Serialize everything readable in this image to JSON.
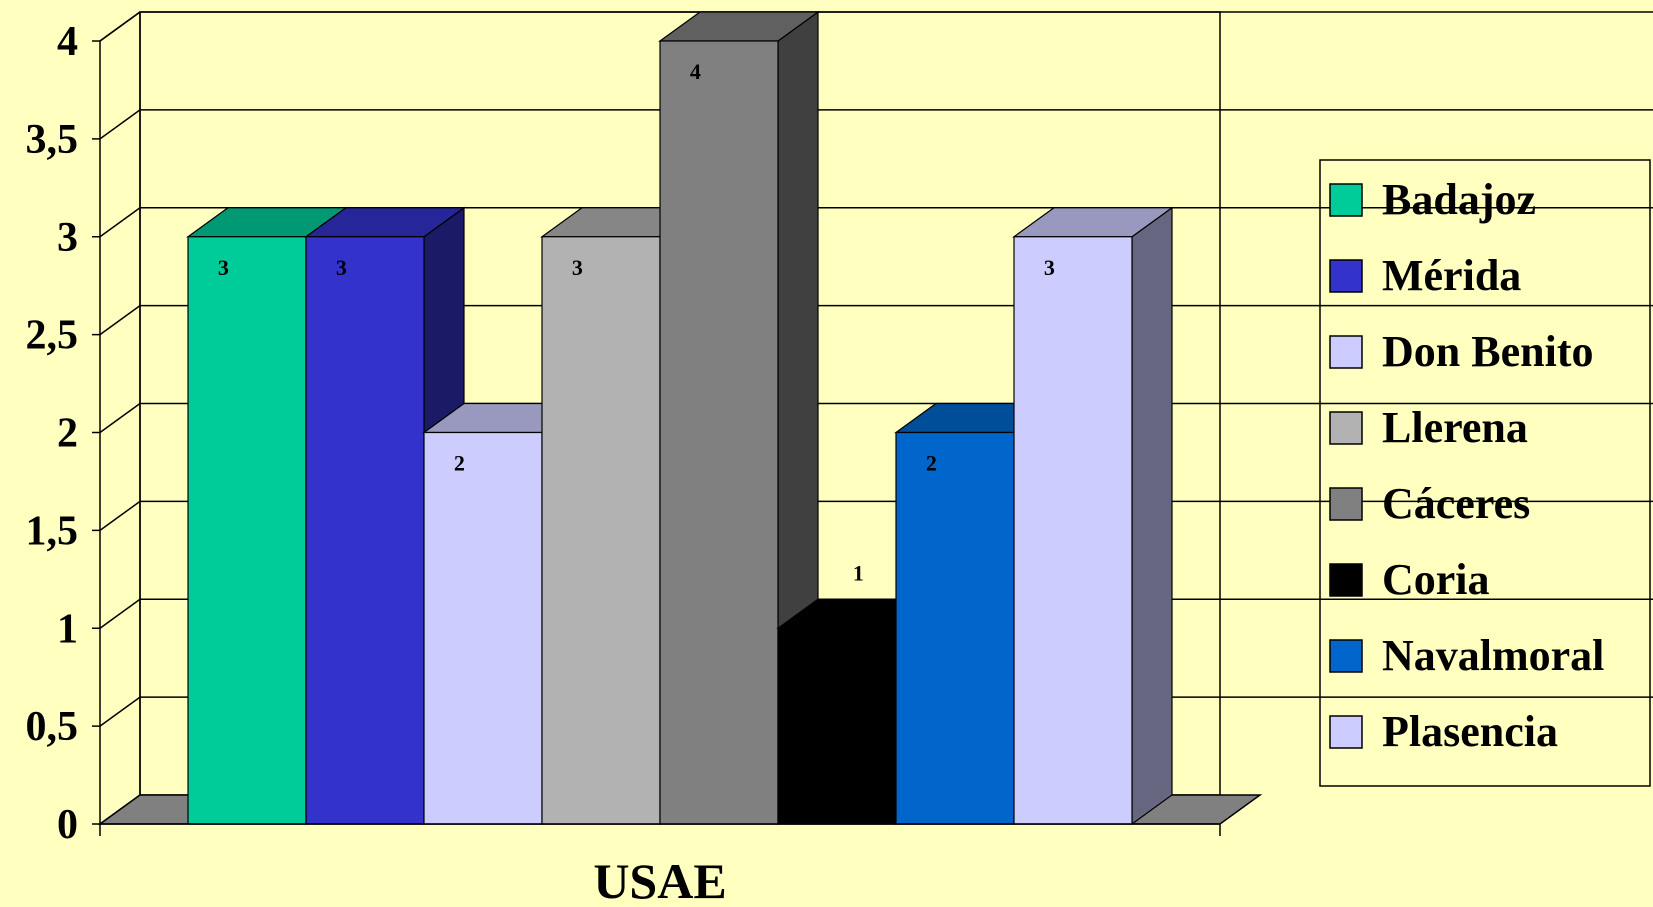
{
  "chart_data": {
    "type": "bar",
    "style": "3d-clustered-column",
    "categories": [
      "USAE"
    ],
    "xlabel": "USAE",
    "ylabel": "",
    "title": "",
    "ylim": [
      0,
      4
    ],
    "yticks": [
      "0",
      "0,5",
      "1",
      "1,5",
      "2",
      "2,5",
      "3",
      "3,5",
      "4"
    ],
    "grid": true,
    "legend_position": "right",
    "series": [
      {
        "name": "Badajoz",
        "values": [
          3
        ],
        "label": "3",
        "color": "#00CC99"
      },
      {
        "name": "Mérida",
        "values": [
          3
        ],
        "label": "3",
        "color": "#3333CC"
      },
      {
        "name": "Don Benito",
        "values": [
          2
        ],
        "label": "2",
        "color": "#CCCCFF"
      },
      {
        "name": "Llerena",
        "values": [
          3
        ],
        "label": "3",
        "color": "#B2B2B2"
      },
      {
        "name": "Cáceres",
        "values": [
          4
        ],
        "label": "4",
        "color": "#808080"
      },
      {
        "name": "Coria",
        "values": [
          1
        ],
        "label": "1",
        "color": "#000000"
      },
      {
        "name": "Navalmoral",
        "values": [
          2
        ],
        "label": "2",
        "color": "#0066CC"
      },
      {
        "name": "Plasencia",
        "values": [
          3
        ],
        "label": "3",
        "color": "#CCCCFF"
      }
    ],
    "colors": {
      "background": "#FFFFC0",
      "floor": "#808080"
    }
  }
}
